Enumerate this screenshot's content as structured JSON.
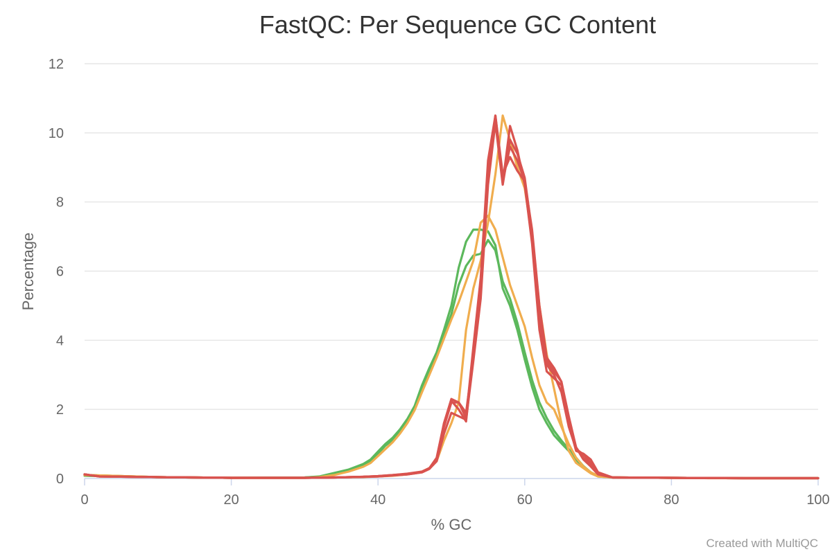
{
  "chart_data": {
    "type": "line",
    "title": "FastQC: Per Sequence GC Content",
    "xlabel": "% GC",
    "ylabel": "Percentage",
    "xlim": [
      0,
      100
    ],
    "ylim": [
      0,
      12
    ],
    "x_ticks": [
      0,
      20,
      40,
      60,
      80,
      100
    ],
    "y_ticks": [
      0,
      2,
      4,
      6,
      8,
      10,
      12
    ],
    "grid": true,
    "legend": "none",
    "credit": "Created with MultiQC",
    "colors": {
      "pass": "#5cb85c",
      "warn": "#f0ad4e",
      "fail": "#d9534f"
    },
    "series": [
      {
        "status": "pass",
        "points": [
          [
            0,
            0.08
          ],
          [
            10,
            0.04
          ],
          [
            20,
            0.02
          ],
          [
            30,
            0.03
          ],
          [
            32,
            0.06
          ],
          [
            34,
            0.16
          ],
          [
            36,
            0.26
          ],
          [
            38,
            0.42
          ],
          [
            39,
            0.55
          ],
          [
            40,
            0.78
          ],
          [
            41,
            1.0
          ],
          [
            42,
            1.18
          ],
          [
            43,
            1.42
          ],
          [
            44,
            1.72
          ],
          [
            45,
            2.1
          ],
          [
            46,
            2.7
          ],
          [
            47,
            3.2
          ],
          [
            48,
            3.65
          ],
          [
            49,
            4.3
          ],
          [
            50,
            5.0
          ],
          [
            51,
            6.1
          ],
          [
            52,
            6.85
          ],
          [
            53,
            7.2
          ],
          [
            54,
            7.2
          ],
          [
            55,
            7.15
          ],
          [
            56,
            6.75
          ],
          [
            57,
            5.5
          ],
          [
            58,
            5.0
          ],
          [
            59,
            4.3
          ],
          [
            60,
            3.45
          ],
          [
            61,
            2.65
          ],
          [
            62,
            2.0
          ],
          [
            63,
            1.6
          ],
          [
            64,
            1.25
          ],
          [
            65,
            1.02
          ],
          [
            66,
            0.8
          ],
          [
            67,
            0.55
          ],
          [
            68,
            0.32
          ],
          [
            69,
            0.16
          ],
          [
            70,
            0.06
          ],
          [
            72,
            0.03
          ],
          [
            80,
            0.02
          ],
          [
            90,
            0.01
          ],
          [
            100,
            0.01
          ]
        ]
      },
      {
        "status": "pass",
        "points": [
          [
            0,
            0.1
          ],
          [
            10,
            0.04
          ],
          [
            20,
            0.02
          ],
          [
            30,
            0.03
          ],
          [
            32,
            0.05
          ],
          [
            34,
            0.14
          ],
          [
            36,
            0.24
          ],
          [
            38,
            0.38
          ],
          [
            39,
            0.5
          ],
          [
            40,
            0.72
          ],
          [
            41,
            0.95
          ],
          [
            42,
            1.12
          ],
          [
            43,
            1.38
          ],
          [
            44,
            1.68
          ],
          [
            45,
            2.05
          ],
          [
            46,
            2.6
          ],
          [
            47,
            3.1
          ],
          [
            48,
            3.6
          ],
          [
            49,
            4.15
          ],
          [
            50,
            4.75
          ],
          [
            51,
            5.6
          ],
          [
            52,
            6.15
          ],
          [
            53,
            6.45
          ],
          [
            54,
            6.5
          ],
          [
            55,
            6.9
          ],
          [
            56,
            6.6
          ],
          [
            57,
            5.7
          ],
          [
            58,
            5.2
          ],
          [
            59,
            4.5
          ],
          [
            60,
            3.65
          ],
          [
            61,
            2.85
          ],
          [
            62,
            2.2
          ],
          [
            63,
            1.75
          ],
          [
            64,
            1.38
          ],
          [
            65,
            1.1
          ],
          [
            66,
            0.85
          ],
          [
            67,
            0.6
          ],
          [
            68,
            0.36
          ],
          [
            69,
            0.18
          ],
          [
            70,
            0.07
          ],
          [
            72,
            0.03
          ],
          [
            80,
            0.02
          ],
          [
            90,
            0.01
          ],
          [
            100,
            0.01
          ]
        ]
      },
      {
        "status": "warn",
        "points": [
          [
            0,
            0.1
          ],
          [
            10,
            0.04
          ],
          [
            20,
            0.02
          ],
          [
            30,
            0.02
          ],
          [
            32,
            0.04
          ],
          [
            34,
            0.1
          ],
          [
            36,
            0.2
          ],
          [
            38,
            0.34
          ],
          [
            39,
            0.45
          ],
          [
            40,
            0.65
          ],
          [
            41,
            0.85
          ],
          [
            42,
            1.05
          ],
          [
            43,
            1.3
          ],
          [
            44,
            1.6
          ],
          [
            45,
            1.98
          ],
          [
            46,
            2.5
          ],
          [
            47,
            3.0
          ],
          [
            48,
            3.5
          ],
          [
            49,
            4.05
          ],
          [
            50,
            4.6
          ],
          [
            51,
            5.1
          ],
          [
            52,
            5.7
          ],
          [
            53,
            6.3
          ],
          [
            54,
            7.4
          ],
          [
            55,
            7.6
          ],
          [
            56,
            7.2
          ],
          [
            57,
            6.4
          ],
          [
            58,
            5.6
          ],
          [
            59,
            5.0
          ],
          [
            60,
            4.4
          ],
          [
            61,
            3.5
          ],
          [
            62,
            2.7
          ],
          [
            63,
            2.2
          ],
          [
            64,
            2.0
          ],
          [
            65,
            1.5
          ],
          [
            66,
            1.0
          ],
          [
            67,
            0.6
          ],
          [
            68,
            0.35
          ],
          [
            69,
            0.18
          ],
          [
            70,
            0.08
          ],
          [
            72,
            0.03
          ],
          [
            80,
            0.02
          ],
          [
            90,
            0.01
          ],
          [
            100,
            0.01
          ]
        ]
      },
      {
        "status": "warn",
        "points": [
          [
            0,
            0.1
          ],
          [
            10,
            0.04
          ],
          [
            20,
            0.02
          ],
          [
            30,
            0.02
          ],
          [
            34,
            0.03
          ],
          [
            38,
            0.04
          ],
          [
            42,
            0.08
          ],
          [
            44,
            0.12
          ],
          [
            46,
            0.2
          ],
          [
            47,
            0.3
          ],
          [
            48,
            0.5
          ],
          [
            49,
            1.1
          ],
          [
            50,
            1.6
          ],
          [
            51,
            2.2
          ],
          [
            52,
            4.3
          ],
          [
            53,
            5.5
          ],
          [
            54,
            6.3
          ],
          [
            55,
            7.4
          ],
          [
            56,
            8.8
          ],
          [
            57,
            10.5
          ],
          [
            58,
            9.8
          ],
          [
            59,
            9.0
          ],
          [
            60,
            8.4
          ],
          [
            61,
            7.0
          ],
          [
            62,
            5.0
          ],
          [
            63,
            3.6
          ],
          [
            64,
            2.6
          ],
          [
            65,
            1.6
          ],
          [
            66,
            0.8
          ],
          [
            67,
            0.45
          ],
          [
            68,
            0.3
          ],
          [
            69,
            0.15
          ],
          [
            70,
            0.06
          ],
          [
            72,
            0.03
          ],
          [
            80,
            0.02
          ],
          [
            85,
            0.01
          ],
          [
            90,
            0.01
          ],
          [
            100,
            0.01
          ]
        ]
      },
      {
        "status": "fail",
        "points": [
          [
            0,
            0.12
          ],
          [
            2,
            0.06
          ],
          [
            10,
            0.04
          ],
          [
            20,
            0.02
          ],
          [
            30,
            0.02
          ],
          [
            34,
            0.03
          ],
          [
            38,
            0.05
          ],
          [
            40,
            0.06
          ],
          [
            42,
            0.09
          ],
          [
            44,
            0.12
          ],
          [
            46,
            0.18
          ],
          [
            47,
            0.28
          ],
          [
            48,
            0.55
          ],
          [
            49,
            1.5
          ],
          [
            50,
            2.2
          ],
          [
            51,
            2.2
          ],
          [
            52,
            1.9
          ],
          [
            53,
            3.5
          ],
          [
            54,
            5.5
          ],
          [
            55,
            8.9
          ],
          [
            56,
            10.5
          ],
          [
            57,
            8.6
          ],
          [
            58,
            9.6
          ],
          [
            59,
            9.2
          ],
          [
            60,
            8.6
          ],
          [
            61,
            7.2
          ],
          [
            62,
            5.0
          ],
          [
            63,
            3.5
          ],
          [
            64,
            3.2
          ],
          [
            65,
            2.8
          ],
          [
            66,
            1.7
          ],
          [
            67,
            0.9
          ],
          [
            68,
            0.55
          ],
          [
            69,
            0.35
          ],
          [
            70,
            0.12
          ],
          [
            72,
            0.03
          ],
          [
            80,
            0.02
          ],
          [
            90,
            0.01
          ],
          [
            100,
            0.01
          ]
        ]
      },
      {
        "status": "fail",
        "points": [
          [
            0,
            0.12
          ],
          [
            2,
            0.06
          ],
          [
            10,
            0.04
          ],
          [
            20,
            0.02
          ],
          [
            30,
            0.02
          ],
          [
            34,
            0.03
          ],
          [
            38,
            0.05
          ],
          [
            40,
            0.07
          ],
          [
            42,
            0.1
          ],
          [
            44,
            0.14
          ],
          [
            46,
            0.2
          ],
          [
            47,
            0.3
          ],
          [
            48,
            0.6
          ],
          [
            49,
            1.6
          ],
          [
            50,
            2.3
          ],
          [
            51,
            2.2
          ],
          [
            52,
            1.75
          ],
          [
            53,
            3.8
          ],
          [
            54,
            5.8
          ],
          [
            55,
            9.2
          ],
          [
            56,
            10.5
          ],
          [
            57,
            8.8
          ],
          [
            58,
            9.3
          ],
          [
            59,
            8.9
          ],
          [
            60,
            8.6
          ],
          [
            61,
            7.0
          ],
          [
            62,
            4.7
          ],
          [
            63,
            3.3
          ],
          [
            64,
            3.0
          ],
          [
            65,
            2.5
          ],
          [
            66,
            1.5
          ],
          [
            67,
            0.85
          ],
          [
            68,
            0.7
          ],
          [
            69,
            0.45
          ],
          [
            70,
            0.15
          ],
          [
            72,
            0.03
          ],
          [
            80,
            0.02
          ],
          [
            90,
            0.01
          ],
          [
            100,
            0.01
          ]
        ]
      },
      {
        "status": "fail",
        "points": [
          [
            0,
            0.12
          ],
          [
            2,
            0.06
          ],
          [
            10,
            0.04
          ],
          [
            20,
            0.02
          ],
          [
            30,
            0.02
          ],
          [
            34,
            0.03
          ],
          [
            38,
            0.05
          ],
          [
            40,
            0.07
          ],
          [
            42,
            0.1
          ],
          [
            44,
            0.13
          ],
          [
            46,
            0.19
          ],
          [
            47,
            0.3
          ],
          [
            48,
            0.55
          ],
          [
            49,
            1.6
          ],
          [
            50,
            2.25
          ],
          [
            51,
            2.0
          ],
          [
            52,
            1.65
          ],
          [
            53,
            3.6
          ],
          [
            54,
            5.4
          ],
          [
            55,
            8.7
          ],
          [
            56,
            10.4
          ],
          [
            57,
            8.55
          ],
          [
            58,
            10.2
          ],
          [
            59,
            9.5
          ],
          [
            60,
            8.5
          ],
          [
            61,
            6.8
          ],
          [
            62,
            4.3
          ],
          [
            63,
            3.1
          ],
          [
            64,
            2.9
          ],
          [
            65,
            2.7
          ],
          [
            66,
            1.6
          ],
          [
            67,
            0.8
          ],
          [
            68,
            0.72
          ],
          [
            69,
            0.55
          ],
          [
            70,
            0.18
          ],
          [
            72,
            0.03
          ],
          [
            80,
            0.02
          ],
          [
            90,
            0.01
          ],
          [
            100,
            0.01
          ]
        ]
      },
      {
        "status": "fail",
        "points": [
          [
            0,
            0.12
          ],
          [
            2,
            0.06
          ],
          [
            10,
            0.04
          ],
          [
            20,
            0.02
          ],
          [
            30,
            0.02
          ],
          [
            34,
            0.03
          ],
          [
            38,
            0.05
          ],
          [
            40,
            0.06
          ],
          [
            42,
            0.09
          ],
          [
            44,
            0.12
          ],
          [
            46,
            0.18
          ],
          [
            47,
            0.28
          ],
          [
            48,
            0.5
          ],
          [
            49,
            1.3
          ],
          [
            50,
            1.9
          ],
          [
            51,
            1.8
          ],
          [
            52,
            1.7
          ],
          [
            53,
            3.4
          ],
          [
            54,
            5.2
          ],
          [
            55,
            8.5
          ],
          [
            56,
            10.3
          ],
          [
            57,
            8.5
          ],
          [
            58,
            9.8
          ],
          [
            59,
            9.4
          ],
          [
            60,
            8.7
          ],
          [
            61,
            7.1
          ],
          [
            62,
            4.9
          ],
          [
            63,
            3.4
          ],
          [
            64,
            3.1
          ],
          [
            65,
            2.8
          ],
          [
            66,
            1.8
          ],
          [
            67,
            0.9
          ],
          [
            68,
            0.6
          ],
          [
            69,
            0.4
          ],
          [
            70,
            0.14
          ],
          [
            72,
            0.03
          ],
          [
            80,
            0.02
          ],
          [
            90,
            0.01
          ],
          [
            100,
            0.01
          ]
        ]
      }
    ]
  }
}
